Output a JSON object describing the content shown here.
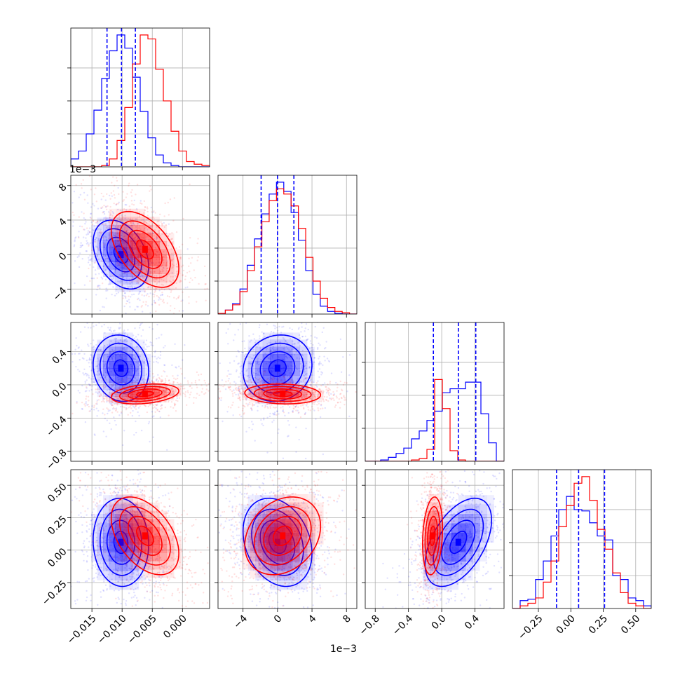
{
  "colors": {
    "series_a": "#0000ff",
    "series_b": "#ff0000",
    "grid": "#b0b0b0",
    "frame": "#000000"
  },
  "chart_data": {
    "type": "corner",
    "n_params": 4,
    "grid": true,
    "params": [
      {
        "range": [
          -0.0185,
          0.0045
        ],
        "ticks": [
          -0.015,
          -0.01,
          -0.005,
          0.0
        ],
        "tick_labels": [
          "−0.015",
          "−0.010",
          "−0.005",
          "0.000"
        ],
        "offset_label": ""
      },
      {
        "range": [
          -0.0069,
          0.0092
        ],
        "ticks": [
          -0.004,
          0.0,
          0.004,
          0.008
        ],
        "tick_labels": [
          "−4",
          "0",
          "4",
          "8"
        ],
        "offset_label": "1e−3"
      },
      {
        "range": [
          -0.92,
          0.75
        ],
        "ticks": [
          -0.8,
          -0.4,
          0.0,
          0.4
        ],
        "tick_labels": [
          "−0.8",
          "−0.4",
          "0.0",
          "0.4"
        ],
        "offset_label": ""
      },
      {
        "range": [
          -0.45,
          0.62
        ],
        "ticks": [
          -0.25,
          0.0,
          0.25,
          0.5
        ],
        "tick_labels": [
          "−0.25",
          "0.00",
          "0.25",
          "0.50"
        ],
        "offset_label": ""
      }
    ],
    "series": [
      {
        "color": "#0000ff",
        "mean": [
          -0.0102,
          0.0,
          0.2,
          0.06
        ],
        "sd": [
          0.0023,
          0.002,
          0.2,
          0.17
        ],
        "quantiles": [
          [
            -0.0125,
            -0.0101,
            -0.0078
          ],
          [
            -0.0019,
            0.0,
            0.0019
          ],
          [
            -0.1,
            0.2,
            0.41
          ],
          [
            -0.11,
            0.06,
            0.26
          ]
        ],
        "hist_weights": [
          [
            0.06,
            0.12,
            0.25,
            0.43,
            0.67,
            0.88,
            1.0,
            0.9,
            0.68,
            0.42,
            0.22,
            0.09,
            0.03,
            0.01,
            0.0,
            0.0,
            0.0,
            0.0
          ],
          [
            0.005,
            0.03,
            0.08,
            0.19,
            0.37,
            0.57,
            0.76,
            0.91,
            1.0,
            0.93,
            0.77,
            0.56,
            0.33,
            0.15,
            0.06,
            0.02,
            0.005,
            0.0,
            0.0
          ],
          [
            0.0,
            0.0,
            0.01,
            0.03,
            0.06,
            0.1,
            0.17,
            0.23,
            0.31,
            0.38,
            0.52,
            0.55,
            0.55,
            0.6,
            0.6,
            0.36,
            0.14,
            0.0
          ],
          [
            0.0,
            0.06,
            0.07,
            0.22,
            0.36,
            0.55,
            0.75,
            0.85,
            0.75,
            0.74,
            0.65,
            0.55,
            0.52,
            0.25,
            0.22,
            0.08,
            0.06,
            0.02
          ]
        ],
        "corr": [
          [
            1,
            -0.35,
            -0.1,
            -0.05
          ],
          [
            -0.35,
            1,
            0.1,
            -0.25
          ],
          [
            -0.1,
            0.1,
            1,
            0.5
          ],
          [
            -0.05,
            -0.25,
            0.5,
            1
          ]
        ]
      },
      {
        "color": "#ff0000",
        "mean": [
          -0.0062,
          0.0006,
          -0.11,
          0.11
        ],
        "sd": [
          0.0028,
          0.0022,
          0.06,
          0.15
        ],
        "quantiles": [],
        "hist_weights": [
          [
            0.0,
            0.0,
            0.0,
            0.0,
            0.01,
            0.06,
            0.2,
            0.45,
            0.78,
            1.0,
            0.97,
            0.74,
            0.5,
            0.27,
            0.12,
            0.04,
            0.02,
            0.01
          ],
          [
            0.005,
            0.03,
            0.07,
            0.17,
            0.33,
            0.51,
            0.7,
            0.86,
            0.95,
            0.91,
            0.82,
            0.65,
            0.43,
            0.25,
            0.12,
            0.05,
            0.02,
            0.01,
            0.0
          ],
          [
            0.0,
            0.0,
            0.0,
            0.0,
            0.0,
            0.0,
            0.01,
            0.02,
            0.09,
            0.62,
            0.4,
            0.08,
            0.01,
            0.0,
            0.0,
            0.0,
            0.0,
            0.0
          ],
          [
            0.0,
            0.02,
            0.04,
            0.08,
            0.2,
            0.36,
            0.62,
            0.78,
            0.95,
            1.0,
            0.82,
            0.6,
            0.45,
            0.27,
            0.12,
            0.04,
            0.02,
            0.0
          ]
        ],
        "corr": [
          [
            1,
            -0.5,
            0.3,
            -0.45
          ],
          [
            -0.5,
            1,
            -0.1,
            0.25
          ],
          [
            0.3,
            -0.1,
            1,
            0.2
          ],
          [
            -0.45,
            0.25,
            0.2,
            1
          ]
        ]
      }
    ]
  }
}
